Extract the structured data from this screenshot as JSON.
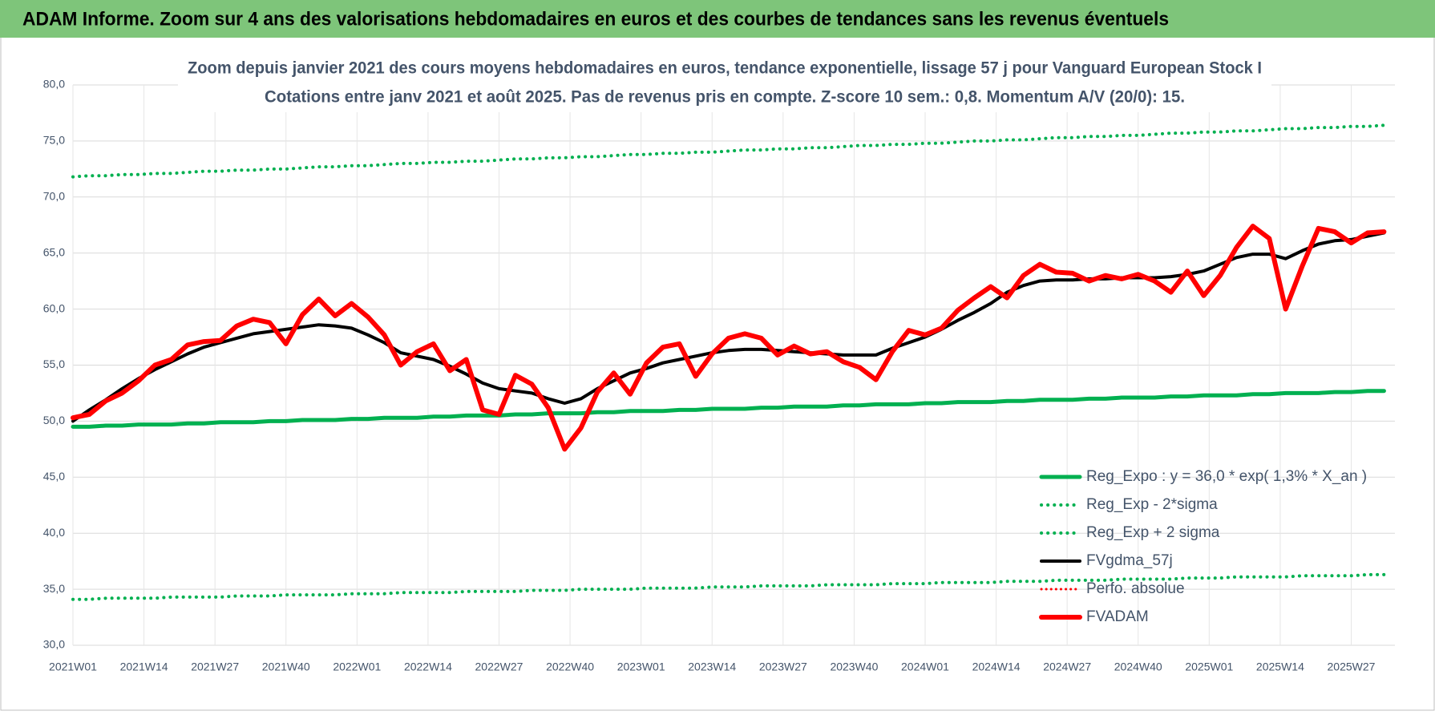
{
  "header": {
    "title": "ADAM Informe. Zoom sur 4 ans des valorisations hebdomadaires en euros et des courbes de tendances sans les revenus éventuels"
  },
  "chart_data": {
    "type": "line",
    "title": "Zoom depuis janvier 2021 des cours moyens hebdomadaires en euros, tendance exponentielle, lissage 57 j pour Vanguard European Stock I",
    "subtitle": "Cotations entre janv 2021 et août 2025.  Pas de revenus pris en compte. Z-score 10 sem.: 0,8. Momentum A/V (20/0): 15.",
    "x": [
      0,
      3,
      6,
      9,
      12,
      15,
      18,
      21,
      24,
      27,
      30,
      33,
      36,
      39,
      42,
      45,
      48,
      51,
      54,
      57,
      60,
      63,
      66,
      69,
      72,
      75,
      78,
      81,
      84,
      87,
      90,
      93,
      96,
      99,
      102,
      105,
      108,
      111,
      114,
      117,
      120,
      123,
      126,
      129,
      132,
      135,
      138,
      141,
      144,
      147,
      150,
      153,
      156,
      159,
      162,
      165,
      168,
      171,
      174,
      177,
      180,
      183,
      186,
      189,
      192,
      195,
      198,
      201,
      204,
      207,
      210,
      213,
      216,
      219,
      222,
      225,
      228,
      231,
      234,
      237,
      240
    ],
    "xlim": [
      0,
      242
    ],
    "xticks": [
      {
        "value": 0,
        "label": "2021W01"
      },
      {
        "value": 13,
        "label": "2021W14"
      },
      {
        "value": 26,
        "label": "2021W27"
      },
      {
        "value": 39,
        "label": "2021W40"
      },
      {
        "value": 52,
        "label": "2022W01"
      },
      {
        "value": 65,
        "label": "2022W14"
      },
      {
        "value": 78,
        "label": "2022W27"
      },
      {
        "value": 91,
        "label": "2022W40"
      },
      {
        "value": 104,
        "label": "2023W01"
      },
      {
        "value": 117,
        "label": "2023W14"
      },
      {
        "value": 130,
        "label": "2023W27"
      },
      {
        "value": 143,
        "label": "2023W40"
      },
      {
        "value": 156,
        "label": "2024W01"
      },
      {
        "value": 169,
        "label": "2024W14"
      },
      {
        "value": 182,
        "label": "2024W27"
      },
      {
        "value": 195,
        "label": "2024W40"
      },
      {
        "value": 208,
        "label": "2025W01"
      },
      {
        "value": 221,
        "label": "2025W14"
      },
      {
        "value": 234,
        "label": "2025W27"
      }
    ],
    "ylim": [
      30,
      80
    ],
    "yticks": [
      {
        "value": 30,
        "label": "30,0"
      },
      {
        "value": 35,
        "label": "35,0"
      },
      {
        "value": 40,
        "label": "40,0"
      },
      {
        "value": 45,
        "label": "45,0"
      },
      {
        "value": 50,
        "label": "50,0"
      },
      {
        "value": 55,
        "label": "55,0"
      },
      {
        "value": 60,
        "label": "60,0"
      },
      {
        "value": 65,
        "label": "65,0"
      },
      {
        "value": 70,
        "label": "70,0"
      },
      {
        "value": 75,
        "label": "75,0"
      },
      {
        "value": 80,
        "label": "80,0"
      }
    ],
    "grid": true,
    "legend": "lower right",
    "series": [
      {
        "name": "Reg_Expo : y = 36,0 * exp( 1,3% *  X_an )",
        "color": "#00b050",
        "style": "solid",
        "width": 5,
        "values": [
          49.5,
          49.5,
          49.6,
          49.6,
          49.7,
          49.7,
          49.7,
          49.8,
          49.8,
          49.9,
          49.9,
          49.9,
          50.0,
          50.0,
          50.1,
          50.1,
          50.1,
          50.2,
          50.2,
          50.3,
          50.3,
          50.3,
          50.4,
          50.4,
          50.5,
          50.5,
          50.5,
          50.6,
          50.6,
          50.7,
          50.7,
          50.7,
          50.8,
          50.8,
          50.9,
          50.9,
          50.9,
          51.0,
          51.0,
          51.1,
          51.1,
          51.1,
          51.2,
          51.2,
          51.3,
          51.3,
          51.3,
          51.4,
          51.4,
          51.5,
          51.5,
          51.5,
          51.6,
          51.6,
          51.7,
          51.7,
          51.7,
          51.8,
          51.8,
          51.9,
          51.9,
          51.9,
          52.0,
          52.0,
          52.1,
          52.1,
          52.1,
          52.2,
          52.2,
          52.3,
          52.3,
          52.3,
          52.4,
          52.4,
          52.5,
          52.5,
          52.5,
          52.6,
          52.6,
          52.7,
          52.7
        ]
      },
      {
        "name": "Reg_Exp - 2*sigma",
        "color": "#00b050",
        "style": "dotted",
        "width": 4,
        "values": [
          34.1,
          34.1,
          34.2,
          34.2,
          34.2,
          34.2,
          34.3,
          34.3,
          34.3,
          34.3,
          34.4,
          34.4,
          34.4,
          34.5,
          34.5,
          34.5,
          34.5,
          34.6,
          34.6,
          34.6,
          34.7,
          34.7,
          34.7,
          34.7,
          34.8,
          34.8,
          34.8,
          34.8,
          34.9,
          34.9,
          34.9,
          35.0,
          35.0,
          35.0,
          35.0,
          35.1,
          35.1,
          35.1,
          35.1,
          35.2,
          35.2,
          35.2,
          35.3,
          35.3,
          35.3,
          35.3,
          35.4,
          35.4,
          35.4,
          35.4,
          35.5,
          35.5,
          35.5,
          35.6,
          35.6,
          35.6,
          35.6,
          35.7,
          35.7,
          35.7,
          35.8,
          35.8,
          35.8,
          35.8,
          35.9,
          35.9,
          35.9,
          35.9,
          36.0,
          36.0,
          36.0,
          36.1,
          36.1,
          36.1,
          36.1,
          36.2,
          36.2,
          36.2,
          36.2,
          36.3,
          36.3
        ]
      },
      {
        "name": "Reg_Exp + 2 sigma",
        "color": "#00b050",
        "style": "dotted",
        "width": 4,
        "values": [
          71.8,
          71.9,
          71.9,
          72.0,
          72.0,
          72.1,
          72.1,
          72.2,
          72.3,
          72.3,
          72.4,
          72.4,
          72.5,
          72.5,
          72.6,
          72.7,
          72.7,
          72.8,
          72.8,
          72.9,
          73.0,
          73.0,
          73.1,
          73.1,
          73.2,
          73.2,
          73.3,
          73.4,
          73.4,
          73.5,
          73.5,
          73.6,
          73.6,
          73.7,
          73.8,
          73.8,
          73.9,
          73.9,
          74.0,
          74.0,
          74.1,
          74.2,
          74.2,
          74.3,
          74.3,
          74.4,
          74.4,
          74.5,
          74.6,
          74.6,
          74.7,
          74.7,
          74.8,
          74.8,
          74.9,
          75.0,
          75.0,
          75.1,
          75.1,
          75.2,
          75.3,
          75.3,
          75.4,
          75.4,
          75.5,
          75.5,
          75.6,
          75.7,
          75.7,
          75.8,
          75.8,
          75.9,
          75.9,
          76.0,
          76.1,
          76.1,
          76.2,
          76.2,
          76.3,
          76.3,
          76.4
        ]
      },
      {
        "name": "FVgdma_57j",
        "color": "#000000",
        "style": "solid",
        "width": 4,
        "values": [
          50.0,
          51.0,
          51.9,
          52.9,
          53.8,
          54.6,
          55.3,
          56.0,
          56.6,
          57.0,
          57.4,
          57.8,
          58.0,
          58.2,
          58.4,
          58.6,
          58.5,
          58.3,
          57.7,
          57.0,
          56.1,
          55.8,
          55.5,
          54.9,
          54.2,
          53.4,
          52.9,
          52.7,
          52.5,
          52.0,
          51.6,
          52.0,
          52.9,
          53.6,
          54.3,
          54.7,
          55.2,
          55.5,
          55.8,
          56.1,
          56.3,
          56.4,
          56.4,
          56.3,
          56.2,
          56.1,
          56.0,
          55.9,
          55.9,
          55.9,
          56.5,
          57.0,
          57.5,
          58.2,
          59.0,
          59.7,
          60.5,
          61.5,
          62.1,
          62.5,
          62.6,
          62.6,
          62.7,
          62.7,
          62.8,
          62.8,
          62.8,
          62.9,
          63.1,
          63.4,
          64.0,
          64.6,
          64.9,
          64.9,
          64.5,
          65.2,
          65.8,
          66.1,
          66.2,
          66.5,
          66.8
        ]
      },
      {
        "name": "Perfo. absolue",
        "color": "#ff0000",
        "style": "dotted",
        "width": 3,
        "values": [
          null,
          null,
          null,
          null,
          null,
          null,
          null,
          null,
          null,
          null,
          null,
          null,
          null,
          null,
          null,
          null,
          null,
          null,
          null,
          null,
          null,
          null,
          null,
          null,
          null,
          null,
          null,
          null,
          null,
          null,
          null,
          null,
          null,
          null,
          null,
          null,
          null,
          null,
          null,
          null,
          null,
          null,
          null,
          null,
          null,
          null,
          null,
          null,
          null,
          null,
          null,
          null,
          null,
          null,
          null,
          null,
          null,
          null,
          null,
          null,
          null,
          null,
          null,
          null,
          null,
          null,
          null,
          null,
          null,
          null,
          null,
          null,
          null,
          null,
          null,
          null,
          null,
          null,
          null,
          null,
          null
        ]
      },
      {
        "name": "FVADAM",
        "color": "#ff0000",
        "style": "solid",
        "width": 6,
        "values": [
          50.3,
          50.6,
          51.8,
          52.5,
          53.6,
          55.0,
          55.5,
          56.8,
          57.1,
          57.2,
          58.5,
          59.1,
          58.8,
          56.9,
          59.5,
          60.9,
          59.4,
          60.5,
          59.3,
          57.7,
          55.0,
          56.2,
          56.9,
          54.5,
          55.5,
          51.0,
          50.6,
          54.1,
          53.3,
          51.2,
          47.5,
          49.4,
          52.6,
          54.3,
          52.4,
          55.2,
          56.6,
          56.9,
          54.0,
          56.0,
          57.4,
          57.8,
          57.4,
          55.9,
          56.7,
          56.0,
          56.2,
          55.3,
          54.8,
          53.7,
          56.2,
          58.1,
          57.7,
          58.3,
          59.9,
          61.0,
          62.0,
          61.0,
          63.0,
          64.0,
          63.3,
          63.2,
          62.5,
          63.0,
          62.7,
          63.1,
          62.5,
          61.5,
          63.4,
          61.2,
          63.0,
          65.5,
          67.4,
          66.3,
          60.0,
          63.8,
          67.2,
          66.9,
          65.9,
          66.8,
          66.9
        ]
      }
    ]
  }
}
